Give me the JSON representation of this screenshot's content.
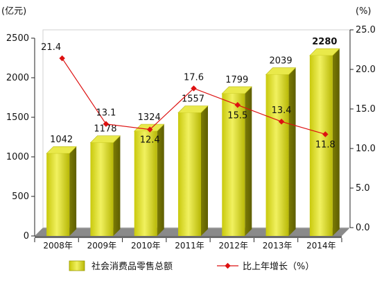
{
  "chart_data": {
    "type": "bar",
    "title": "",
    "xlabel": "",
    "y_unit_left": "(亿元)",
    "y_unit_right": "(%)",
    "categories": [
      "2008年",
      "2009年",
      "2010年",
      "2011年",
      "2012年",
      "2013年",
      "2014年"
    ],
    "ylim_left": [
      0,
      2500
    ],
    "yticks_left": [
      "0",
      "500",
      "1000",
      "1500",
      "2000",
      "2500"
    ],
    "ylim_right": [
      0,
      25
    ],
    "yticks_right": [
      "0.0",
      "5.0",
      "10.0",
      "15.0",
      "20.0",
      "25.0"
    ],
    "grid": false,
    "legend_position": "bottom",
    "series": [
      {
        "name": "社会消费品零售总额",
        "type": "bar",
        "axis": "left",
        "values": [
          1042,
          1178,
          1324,
          1557,
          1799,
          2039,
          2280
        ],
        "labels": [
          "1042",
          "1178",
          "1324",
          "1557",
          "1799",
          "2039",
          "2280"
        ],
        "color": "#d8d81a"
      },
      {
        "name": "比上年增长（%）",
        "type": "line",
        "axis": "right",
        "values": [
          21.4,
          13.1,
          12.4,
          17.6,
          15.5,
          13.4,
          11.8
        ],
        "labels": [
          "21.4",
          "13.1",
          "12.4",
          "17.6",
          "15.5",
          "13.4",
          "11.8"
        ],
        "color": "#dd1111"
      }
    ]
  }
}
